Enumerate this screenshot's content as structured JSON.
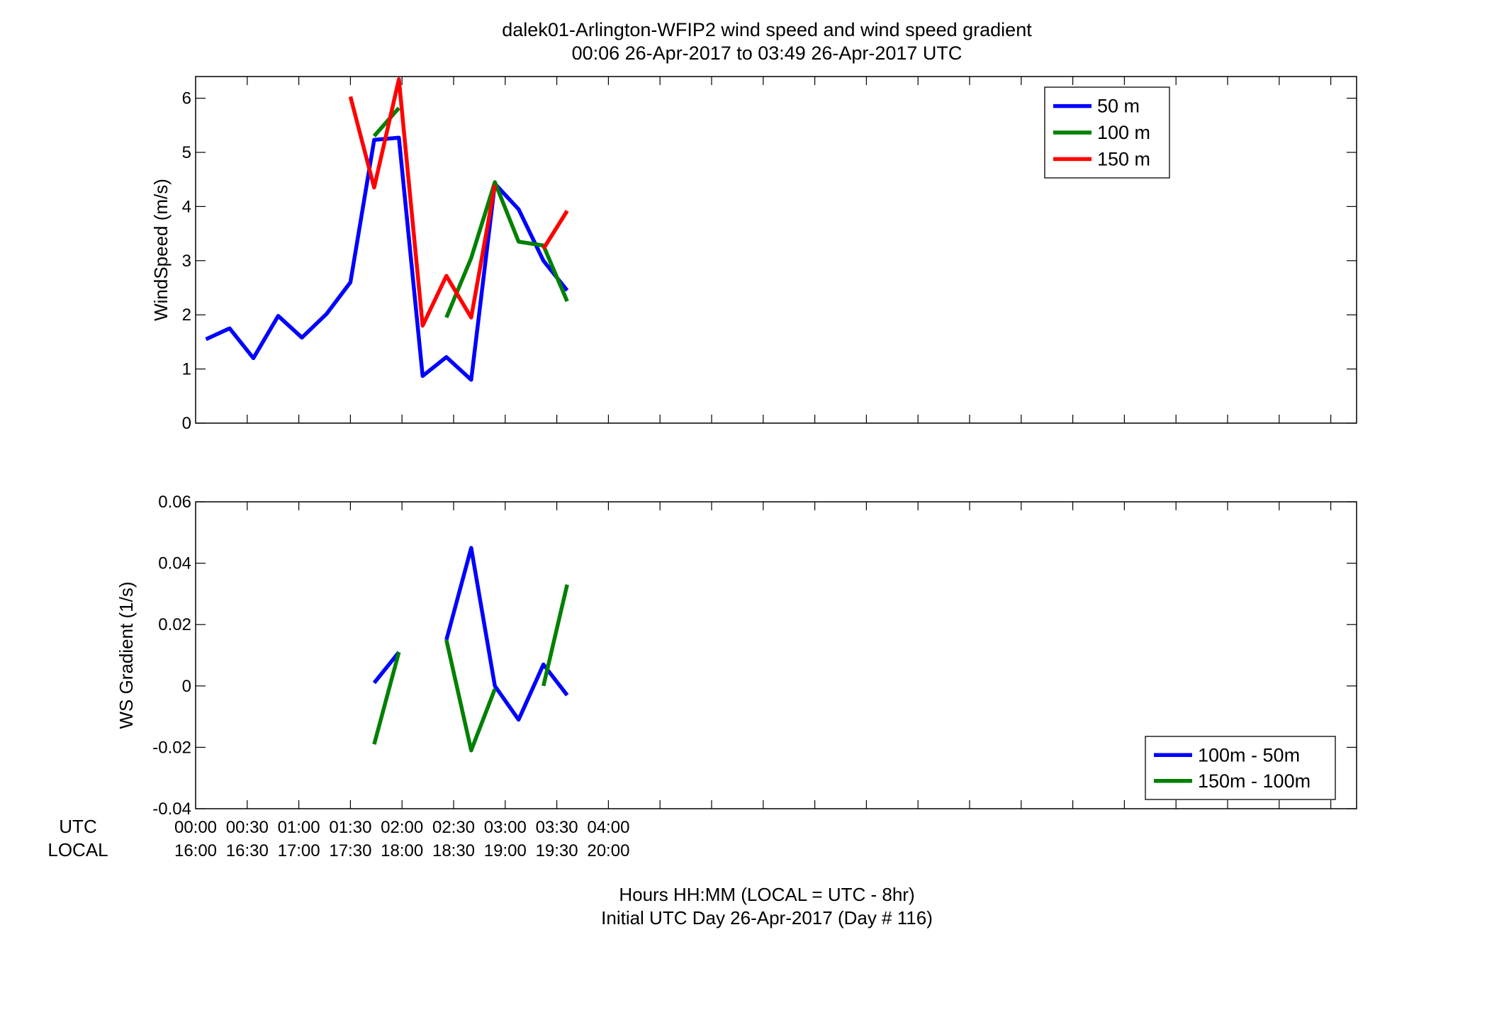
{
  "figure": {
    "title_line1": "dalek01-Arlington-WFIP2  wind speed and wind speed gradient",
    "title_line2": "00:06 26-Apr-2017 to 03:49 26-Apr-2017  UTC",
    "xlabel_line1": "Hours HH:MM  (LOCAL = UTC - 8hr)",
    "xlabel_line2": "Initial UTC Day 26-Apr-2017 (Day # 116)",
    "row_label_utc": "UTC",
    "row_label_local": "LOCAL",
    "utc_ticks": [
      "00:00",
      "00:30",
      "01:00",
      "01:30",
      "02:00",
      "02:30",
      "03:00",
      "03:30",
      "04:00"
    ],
    "local_ticks": [
      "16:00",
      "16:30",
      "17:00",
      "17:30",
      "18:00",
      "18:30",
      "19:00",
      "19:30",
      "20:00"
    ]
  },
  "chart_data": [
    {
      "type": "line",
      "ylabel": "WindSpeed (m/s)",
      "xlim_hours": [
        0,
        11.25
      ],
      "ylim": [
        0,
        6.4
      ],
      "yticks": [
        0,
        1,
        2,
        3,
        4,
        5,
        6
      ],
      "legend_position": "top-right",
      "grid": false,
      "x_hours": [
        0.1,
        0.33,
        0.56,
        0.8,
        1.03,
        1.27,
        1.5,
        1.73,
        1.97,
        2.2,
        2.43,
        2.67,
        2.9,
        3.13,
        3.37,
        3.6
      ],
      "series": [
        {
          "name": "50 m",
          "color": "#0000ff",
          "values": [
            1.55,
            1.75,
            1.2,
            1.98,
            1.58,
            2.02,
            2.6,
            5.23,
            5.27,
            0.87,
            1.22,
            0.8,
            4.42,
            3.95,
            3.0,
            2.45
          ]
        },
        {
          "name": "100 m",
          "color": "#008000",
          "values": [
            null,
            null,
            null,
            null,
            null,
            null,
            null,
            5.3,
            5.82,
            null,
            1.95,
            3.05,
            4.45,
            3.35,
            3.28,
            2.25
          ]
        },
        {
          "name": "150 m",
          "color": "#ff0000",
          "values": [
            null,
            null,
            null,
            null,
            null,
            null,
            6.03,
            4.35,
            6.35,
            1.8,
            2.72,
            1.95,
            4.4,
            null,
            3.22,
            3.92
          ]
        }
      ]
    },
    {
      "type": "line",
      "ylabel": "WS Gradient (1/s)",
      "xlim_hours": [
        0,
        11.25
      ],
      "ylim": [
        -0.04,
        0.06
      ],
      "yticks": [
        -0.04,
        -0.02,
        0,
        0.02,
        0.04,
        0.06
      ],
      "ytick_labels": [
        "-0.04",
        "-0.02",
        "0",
        "0.02",
        "0.04",
        "0.06"
      ],
      "legend_position": "bottom-right",
      "grid": false,
      "x_hours": [
        0.1,
        0.33,
        0.56,
        0.8,
        1.03,
        1.27,
        1.5,
        1.73,
        1.97,
        2.2,
        2.43,
        2.67,
        2.9,
        3.13,
        3.37,
        3.6
      ],
      "series": [
        {
          "name": "100m - 50m",
          "color": "#0000ff",
          "values": [
            null,
            null,
            null,
            null,
            null,
            null,
            null,
            0.001,
            0.011,
            null,
            0.015,
            0.045,
            0.0,
            -0.011,
            0.007,
            -0.003
          ]
        },
        {
          "name": "150m - 100m",
          "color": "#008000",
          "values": [
            null,
            null,
            null,
            null,
            null,
            null,
            null,
            -0.019,
            0.011,
            null,
            0.015,
            -0.021,
            -0.001,
            null,
            0.0,
            0.033
          ]
        }
      ]
    }
  ]
}
